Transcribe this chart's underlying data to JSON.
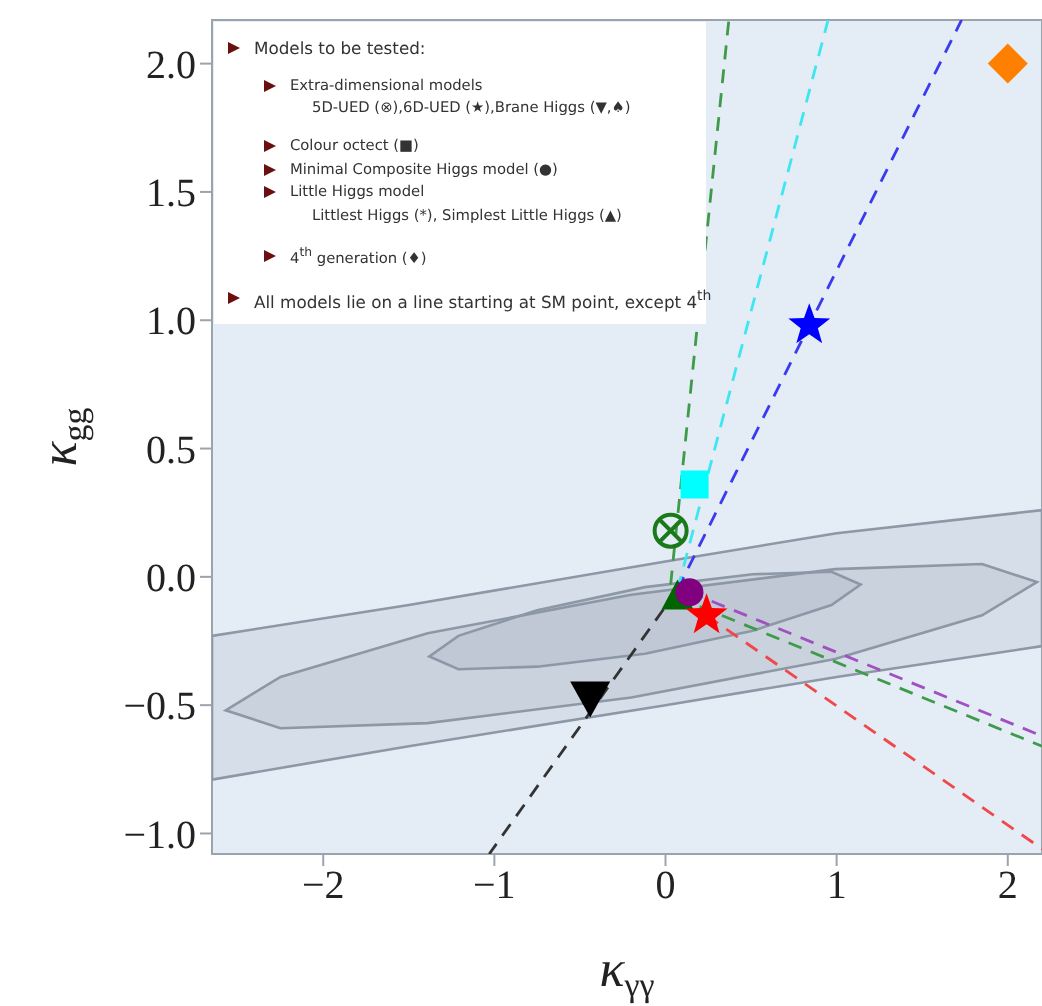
{
  "chart_data": {
    "type": "scatter",
    "xlabel": "κ$_{γγ}$",
    "ylabel": "κ$_{gg}$",
    "xlim": [
      -2.65,
      2.2
    ],
    "ylim": [
      -1.08,
      2.17
    ],
    "xticks": [
      {
        "value": -2,
        "label": "−2"
      },
      {
        "value": -1,
        "label": "−1"
      },
      0,
      1,
      2
    ],
    "yticks": [
      {
        "value": -1,
        "label": "−1.0"
      },
      {
        "value": -0.5,
        "label": "−0.5"
      },
      {
        "value": 0,
        "label": "0.0"
      },
      {
        "value": 0.5,
        "label": "0.5"
      },
      {
        "value": 1,
        "label": "1.0"
      },
      {
        "value": 1.5,
        "label": "1.5"
      },
      {
        "value": 2,
        "label": "2.0"
      }
    ],
    "annotations": [
      "Models to be tested:",
      "Extra-dimensional models",
      "5D-UED (⊗),6D-UED (★),Brane Higgs (▼,♠)",
      "Colour octect (■)",
      "Minimal Composite Higgs model (●)",
      "Little Higgs model",
      "Littlest Higgs (*), Simplest Little Higgs (▲)",
      "4$^{th}$ generation (♦)",
      "All models lie on a line starting at SM point, except 4$^{th}$"
    ],
    "series": [
      {
        "type": "area",
        "color": "#8c98a6",
        "x": [
          -2.65,
          -1.5,
          0,
          1,
          2.2,
          2.2,
          1,
          0,
          -1.5,
          -2.65,
          -2.65
        ],
        "values": [
          -0.23,
          -0.11,
          0.06,
          0.17,
          0.26,
          -0.27,
          -0.39,
          -0.5,
          -0.66,
          -0.79,
          -0.23
        ]
      },
      {
        "type": "area",
        "color": "#8c98a6",
        "x": [
          2.17,
          1.85,
          0.99,
          -0.2,
          -1.39,
          -2.25,
          -2.57,
          -2.25,
          -1.39,
          -0.2,
          0.99,
          1.85,
          2.17
        ],
        "values": [
          -0.02,
          0.05,
          0.03,
          -0.07,
          -0.22,
          -0.39,
          -0.52,
          -0.59,
          -0.57,
          -0.47,
          -0.32,
          -0.15,
          -0.02
        ]
      },
      {
        "type": "area",
        "color": "#8c98a6",
        "x": [
          1.14,
          0.97,
          0.51,
          -0.12,
          -0.75,
          -1.21,
          -1.38,
          -1.21,
          -0.75,
          -0.12,
          0.51,
          0.97,
          1.14
        ],
        "values": [
          -0.03,
          0.02,
          0.01,
          -0.04,
          -0.13,
          -0.23,
          -0.31,
          -0.36,
          -0.35,
          -0.3,
          -0.21,
          -0.11,
          -0.03
        ]
      },
      {
        "type": "line",
        "line_style": "dashed",
        "color": "#333333",
        "x": [
          0.07,
          -1.03
        ],
        "values": [
          -0.05,
          -1.08
        ]
      },
      {
        "type": "line",
        "line_style": "dashed",
        "color": "#3a3af0",
        "x": [
          0.07,
          1.73
        ],
        "values": [
          -0.05,
          2.17
        ]
      },
      {
        "type": "line",
        "line_style": "dashed",
        "color": "#3ee6f0",
        "x": [
          0.07,
          0.95
        ],
        "values": [
          -0.05,
          2.17
        ]
      },
      {
        "type": "line",
        "line_style": "dashed",
        "color": "#3f9a4a",
        "x": [
          0.03,
          0.37
        ],
        "values": [
          -0.03,
          2.17
        ]
      },
      {
        "type": "line",
        "line_style": "dashed",
        "color": "#a050c0",
        "x": [
          0.14,
          2.2
        ],
        "values": [
          -0.06,
          -0.62
        ]
      },
      {
        "type": "line",
        "line_style": "dashed",
        "color": "#3f9a4a",
        "x": [
          0.07,
          2.2
        ],
        "values": [
          -0.08,
          -0.66
        ]
      },
      {
        "type": "line",
        "line_style": "dashed",
        "color": "#f04848",
        "x": [
          0.24,
          2.2
        ],
        "values": [
          -0.15,
          -1.06
        ]
      },
      {
        "marker": "triangle-down",
        "color": "#000000",
        "x": [
          -0.44
        ],
        "values": [
          -0.47
        ]
      },
      {
        "marker": "circle-cross",
        "color": "#1a7a1a",
        "x": [
          0.03
        ],
        "values": [
          0.18
        ]
      },
      {
        "marker": "square",
        "color": "#00ffff",
        "x": [
          0.17
        ],
        "values": [
          0.36
        ]
      },
      {
        "marker": "star",
        "color": "#0000ff",
        "x": [
          0.84
        ],
        "values": [
          0.98
        ]
      },
      {
        "marker": "triangle",
        "color": "#006400",
        "x": [
          0.07
        ],
        "values": [
          -0.08
        ]
      },
      {
        "marker": "circle",
        "color": "#800080",
        "x": [
          0.14
        ],
        "values": [
          -0.06
        ]
      },
      {
        "marker": "star",
        "color": "#ff0000",
        "x": [
          0.24
        ],
        "values": [
          -0.15
        ]
      },
      {
        "marker": "diamond",
        "color": "#ff8000",
        "x": [
          2.0
        ],
        "values": [
          2.0
        ]
      }
    ]
  }
}
